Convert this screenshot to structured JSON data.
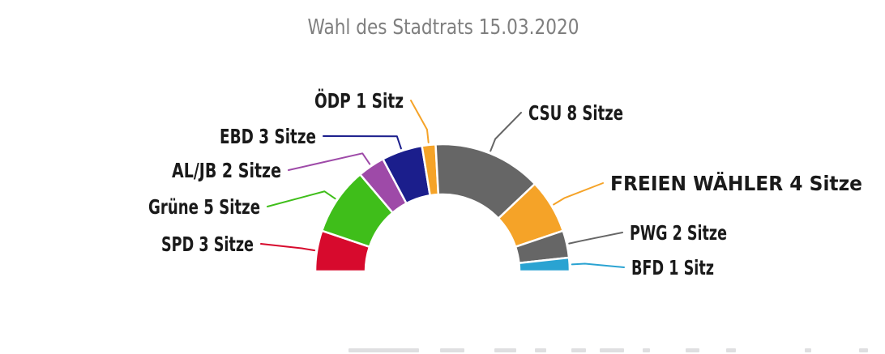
{
  "title": "Wahl des Stadtrats 15.03.2020",
  "chart_data": {
    "type": "pie",
    "subtype": "semicircle_donut",
    "title": "Wahl des Stadtrats 15.03.2020",
    "arc_degrees": 180,
    "order": "left_to_right",
    "total_seats": 29,
    "series": [
      {
        "id": "spd",
        "name": "SPD",
        "seats": 3,
        "label": "SPD 3 Sitze",
        "color": "#D70A2D"
      },
      {
        "id": "gruene",
        "name": "Grüne",
        "seats": 5,
        "label": "Grüne 5 Sitze",
        "color": "#3FBE1A"
      },
      {
        "id": "al-jb",
        "name": "AL/JB",
        "seats": 2,
        "label": "AL/JB 2 Sitze",
        "color": "#9E4AA8"
      },
      {
        "id": "ebd",
        "name": "EBD",
        "seats": 3,
        "label": "EBD 3 Sitze",
        "color": "#1B1E8C"
      },
      {
        "id": "oedp",
        "name": "ÖDP",
        "seats": 1,
        "label": "ÖDP 1 Sitz",
        "color": "#F5A328"
      },
      {
        "id": "csu",
        "name": "CSU",
        "seats": 8,
        "label": "CSU 8 Sitze",
        "color": "#666666"
      },
      {
        "id": "freie-waehler",
        "name": "FREIEN WÄHLER",
        "seats": 4,
        "label": "FREIEN WÄHLER 4 Sitze",
        "color": "#F5A328"
      },
      {
        "id": "pwg",
        "name": "PWG",
        "seats": 2,
        "label": "PWG 2 Sitze",
        "color": "#666666"
      },
      {
        "id": "bfd",
        "name": "BFD",
        "seats": 1,
        "label": "BFD 1 Sitz",
        "color": "#2AA3D2"
      }
    ]
  },
  "styles": {
    "background": "#FFFFFF",
    "title_color": "#7F7F7F",
    "label_color": "#1A1A1A",
    "slice_border": "#FFFFFF"
  }
}
